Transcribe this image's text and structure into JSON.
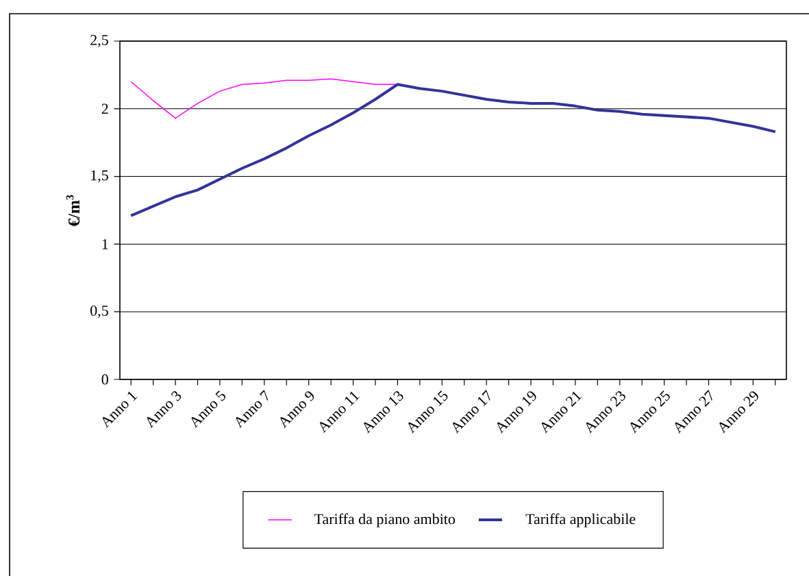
{
  "chart_data": {
    "type": "line",
    "ylabel": "€/m$^{3}$",
    "categories": [
      "Anno 1",
      null,
      "Anno 3",
      null,
      "Anno 5",
      null,
      "Anno 7",
      null,
      "Anno 9",
      null,
      "Anno 11",
      null,
      "Anno 13",
      null,
      "Anno 15",
      null,
      "Anno 17",
      null,
      "Anno 19",
      null,
      "Anno 21",
      null,
      "Anno 23",
      null,
      "Anno 25",
      null,
      "Anno 27",
      null,
      "Anno 29",
      null
    ],
    "series": [
      {
        "name": "Tariffa da piano ambito",
        "color": "#ff00ff",
        "values": [
          2.2,
          2.06,
          1.93,
          2.04,
          2.13,
          2.18,
          2.19,
          2.21,
          2.21,
          2.22,
          2.2,
          2.18,
          2.18,
          null,
          null,
          null,
          null,
          null,
          null,
          null,
          null,
          null,
          null,
          null,
          null,
          null,
          null,
          null,
          null,
          null
        ]
      },
      {
        "name": "Tariffa applicabile",
        "color": "#333399",
        "values": [
          1.21,
          1.28,
          1.35,
          1.4,
          1.48,
          1.56,
          1.63,
          1.71,
          1.8,
          1.88,
          1.97,
          2.07,
          2.18,
          2.15,
          2.13,
          2.1,
          2.07,
          2.05,
          2.04,
          2.04,
          2.02,
          1.99,
          1.98,
          1.96,
          1.95,
          1.94,
          1.93,
          1.9,
          1.87,
          1.83
        ]
      }
    ],
    "ylim": [
      0,
      2.5
    ],
    "yticks": [
      0,
      {
        "value": 0.5,
        "label": "0,5"
      },
      1,
      {
        "value": 1.5,
        "label": "1,5"
      },
      2,
      {
        "value": 2.5,
        "label": "2,5"
      }
    ],
    "grid": "y",
    "legend": "bottom",
    "marker": "none",
    "line_style": "solid"
  }
}
